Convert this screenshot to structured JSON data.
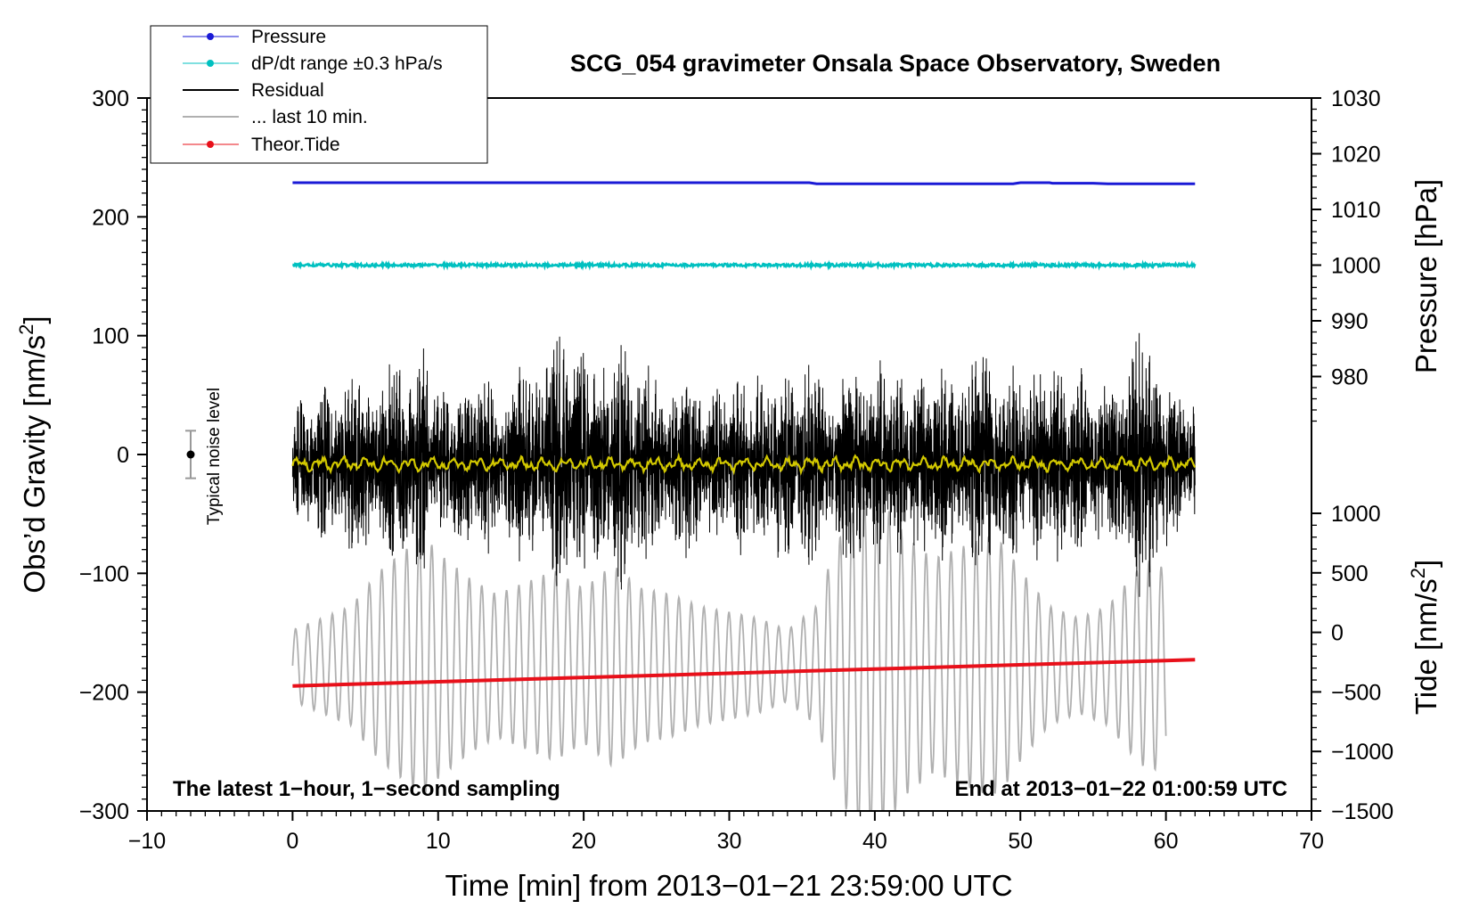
{
  "chart_data": {
    "type": "line",
    "title": "SCG_054 gravimeter Onsala Space Observatory, Sweden",
    "xlabel": "Time [min] from 2013−01−21 23:59:00 UTC",
    "ylabel": "Obs’d Gravity [nm/s",
    "ylabel_superscript": "2",
    "ylabel_suffix": "]",
    "xlim": [
      -10,
      70
    ],
    "ylim": [
      -300,
      300
    ],
    "x_ticks": [
      -10,
      0,
      10,
      20,
      30,
      40,
      50,
      60,
      70
    ],
    "x_tick_labels": [
      "−10",
      "0",
      "10",
      "20",
      "30",
      "40",
      "50",
      "60",
      "70"
    ],
    "y_ticks": [
      -300,
      -200,
      -100,
      0,
      100,
      200,
      300
    ],
    "y_tick_labels": [
      "−300",
      "−200",
      "−100",
      "0",
      "100",
      "200",
      "300"
    ],
    "right_axes": [
      {
        "name": "Pressure",
        "label": "Pressure [hPa]",
        "range": [
          970,
          1030
        ],
        "ticks": [
          980,
          990,
          1000,
          1010,
          1020,
          1030
        ],
        "tick_labels": [
          "980",
          "990",
          "1000",
          "1010",
          "1020",
          "1030"
        ]
      },
      {
        "name": "Tide",
        "label": "Tide [nm/s",
        "label_superscript": "2",
        "label_suffix": "]",
        "range": [
          -1500,
          1000
        ],
        "ticks": [
          -1500,
          -1000,
          -500,
          0,
          500,
          1000
        ],
        "tick_labels": [
          "−1500",
          "−1000",
          "−500",
          "0",
          "500",
          "1000"
        ]
      }
    ],
    "series": [
      {
        "name": "Pressure",
        "axis": "pressure",
        "color": "#1a1ad6",
        "x": [
          0,
          10,
          20,
          30,
          35.5,
          36,
          45,
          49.5,
          50,
          52,
          52.2,
          55,
          56,
          62
        ],
        "y": [
          1014.8,
          1014.8,
          1014.8,
          1014.8,
          1014.8,
          1014.6,
          1014.6,
          1014.6,
          1014.8,
          1014.8,
          1014.7,
          1014.7,
          1014.6,
          1014.6
        ]
      },
      {
        "name": "dP/dt range ±0.3 hPa/s",
        "axis": "pressure",
        "color": "#00c0c0",
        "x": [
          0,
          62
        ],
        "y": [
          1000,
          1000
        ],
        "noise_amplitude": 0.25
      },
      {
        "name": "Residual",
        "axis": "gravity",
        "color": "#000000",
        "x_range": [
          0,
          62
        ],
        "center": -8,
        "envelope_x": [
          0,
          1,
          3,
          5,
          7,
          9,
          10,
          12,
          14,
          17,
          19,
          21,
          23,
          25,
          27,
          29,
          31,
          33,
          35,
          36,
          38,
          40,
          42,
          44,
          46,
          48,
          50,
          52,
          54,
          56,
          58,
          59,
          60,
          61,
          62
        ],
        "envelope": [
          55,
          60,
          75,
          80,
          90,
          105,
          65,
          85,
          70,
          100,
          120,
          90,
          110,
          75,
          80,
          70,
          75,
          80,
          100,
          75,
          85,
          90,
          80,
          90,
          85,
          100,
          75,
          85,
          80,
          75,
          115,
          105,
          85,
          70,
          55
        ]
      },
      {
        "name": "Residual (smoothed)",
        "axis": "gravity",
        "color": "#d2c800",
        "x_range": [
          0,
          62
        ],
        "center": -8,
        "amplitude": 6
      },
      {
        "name": "... last 10 min.",
        "axis": "tide",
        "color": "#b0b0b0",
        "x_range": [
          0,
          60
        ],
        "center": -280,
        "period_min": 0.85,
        "envelope_x": [
          0,
          2,
          4,
          6,
          8,
          9,
          10,
          12,
          14,
          16,
          18,
          20,
          22,
          24,
          26,
          28,
          30,
          32,
          34,
          36,
          37,
          38,
          39,
          40,
          41,
          42,
          44,
          46,
          48,
          49,
          50,
          52,
          54,
          56,
          58,
          59,
          60
        ],
        "envelope": [
          300,
          400,
          500,
          800,
          1000,
          1100,
          950,
          750,
          600,
          700,
          800,
          650,
          850,
          650,
          600,
          500,
          450,
          400,
          300,
          500,
          900,
          1200,
          1400,
          1350,
          1300,
          1100,
          900,
          1000,
          1100,
          1000,
          800,
          500,
          400,
          500,
          800,
          900,
          800
        ]
      },
      {
        "name": "Theor.Tide",
        "axis": "tide",
        "color": "#e8101a",
        "x": [
          0,
          62
        ],
        "y": [
          -450,
          -230
        ]
      }
    ],
    "legend": [
      {
        "label": "Pressure",
        "color": "#1a1ad6",
        "marker": true,
        "lw": 1
      },
      {
        "label": "dP/dt range ±0.3 hPa/s",
        "color": "#00c0c0",
        "marker": true,
        "lw": 1
      },
      {
        "label": "Residual",
        "color": "#000000",
        "marker": false,
        "lw": 2
      },
      {
        "label": "... last 10 min.",
        "color": "#b0b0b0",
        "marker": false,
        "lw": 2
      },
      {
        "label": "Theor.Tide",
        "color": "#e8101a",
        "marker": true,
        "lw": 1
      }
    ],
    "legend_position": "top-left",
    "noise_level": {
      "label": "Typical noise level",
      "x": -7,
      "value": 0,
      "half_range": 20,
      "color": "#999999"
    },
    "annotations": {
      "bottom_left": "The latest 1−hour, 1−second sampling",
      "bottom_right": "End at 2013−01−22 01:00:59 UTC"
    },
    "grid": false
  }
}
